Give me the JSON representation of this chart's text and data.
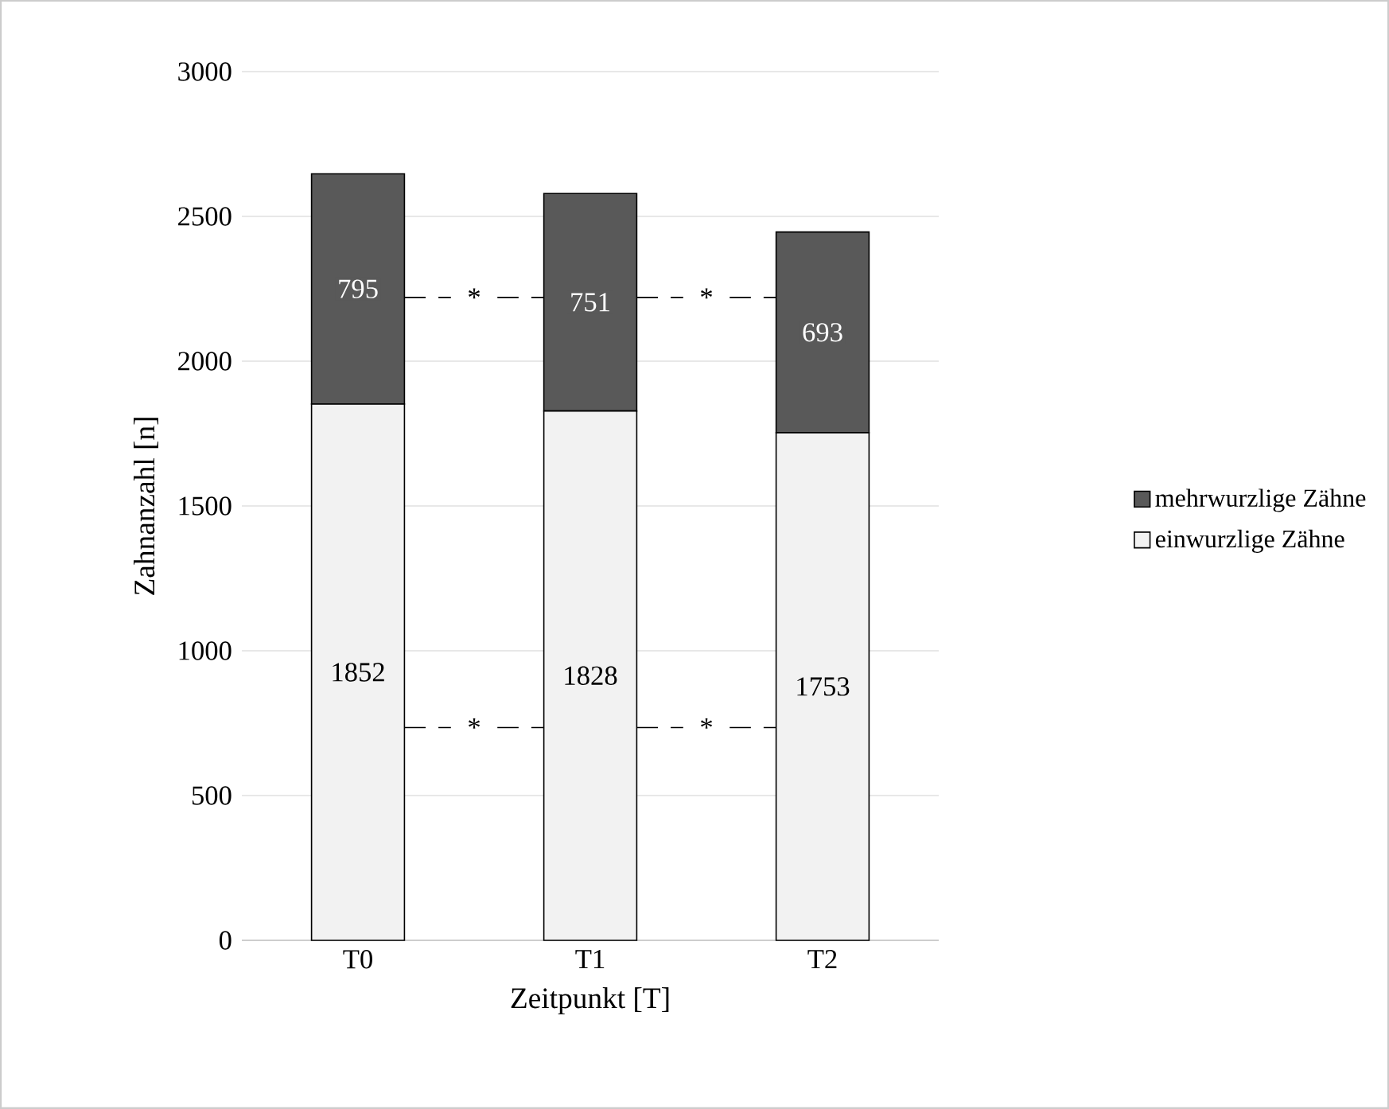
{
  "chart_data": {
    "type": "bar",
    "stacked": true,
    "categories": [
      "T0",
      "T1",
      "T2"
    ],
    "series": [
      {
        "name": "einwurzlige Zähne",
        "color": "#f2f2f2",
        "values": [
          1852,
          1828,
          1753
        ]
      },
      {
        "name": "mehrwurzlige Zähne",
        "color": "#595959",
        "values": [
          795,
          751,
          693
        ]
      }
    ],
    "xlabel": "Zeitpunkt [T]",
    "ylabel": "Zahnanzahl [n]",
    "ylim": [
      0,
      3000
    ],
    "yticks": [
      0,
      500,
      1000,
      1500,
      2000,
      2500,
      3000
    ],
    "grid": "y",
    "legend": "right",
    "data_labels": true,
    "annotations": [
      "*",
      "*",
      "*",
      "*"
    ]
  }
}
